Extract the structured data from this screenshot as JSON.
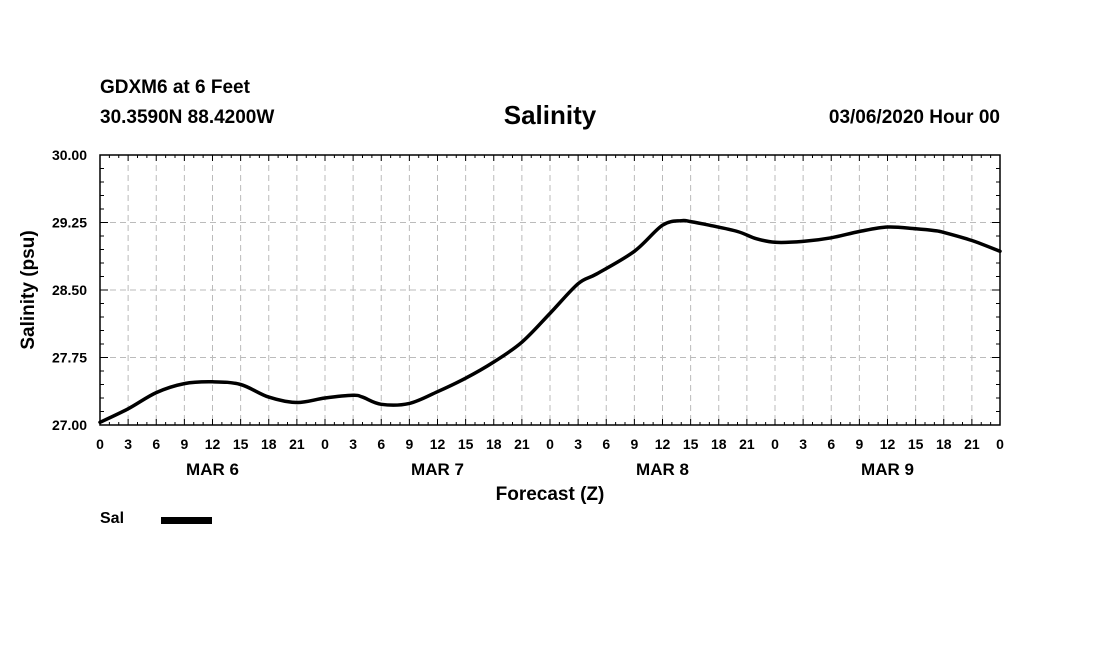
{
  "header": {
    "station": "GDXM6 at 6 Feet",
    "coords": "30.3590N 88.4200W",
    "title": "Salinity",
    "run": "03/06/2020 Hour 00"
  },
  "legend": {
    "label": "Sal"
  },
  "chart_data": {
    "type": "line",
    "title": "Salinity",
    "xlabel": "Forecast (Z)",
    "ylabel": "Salinity (psu)",
    "ylim": [
      27.0,
      30.0
    ],
    "yticks": [
      "27.00",
      "27.75",
      "28.50",
      "29.25",
      "30.00"
    ],
    "xlim": [
      0,
      96
    ],
    "xtick_labels": [
      "0",
      "3",
      "6",
      "9",
      "12",
      "15",
      "18",
      "21",
      "0",
      "3",
      "6",
      "9",
      "12",
      "15",
      "18",
      "21",
      "0",
      "3",
      "6",
      "9",
      "12",
      "15",
      "18",
      "21",
      "0",
      "3",
      "6",
      "9",
      "12",
      "15",
      "18",
      "21",
      "0"
    ],
    "day_labels": [
      {
        "label": "MAR 6",
        "hour": 12
      },
      {
        "label": "MAR 7",
        "hour": 36
      },
      {
        "label": "MAR 8",
        "hour": 60
      },
      {
        "label": "MAR 9",
        "hour": 84
      }
    ],
    "grid": true,
    "series": [
      {
        "name": "Sal",
        "color": "#000000",
        "x": [
          0,
          3,
          6,
          9,
          12,
          15,
          18,
          21,
          24,
          27,
          28,
          30,
          33,
          36,
          39,
          42,
          45,
          48,
          51,
          53,
          57,
          60,
          62,
          63,
          65,
          68,
          70,
          72,
          75,
          78,
          81,
          84,
          87,
          89,
          90,
          93,
          96
        ],
        "values": [
          27.03,
          27.18,
          27.36,
          27.46,
          27.48,
          27.45,
          27.31,
          27.25,
          27.3,
          27.33,
          27.31,
          27.23,
          27.24,
          27.37,
          27.52,
          27.7,
          27.92,
          28.24,
          28.57,
          28.68,
          28.93,
          29.22,
          29.27,
          29.26,
          29.22,
          29.15,
          29.07,
          29.03,
          29.04,
          29.08,
          29.15,
          29.2,
          29.18,
          29.16,
          29.14,
          29.05,
          28.93
        ]
      }
    ]
  }
}
